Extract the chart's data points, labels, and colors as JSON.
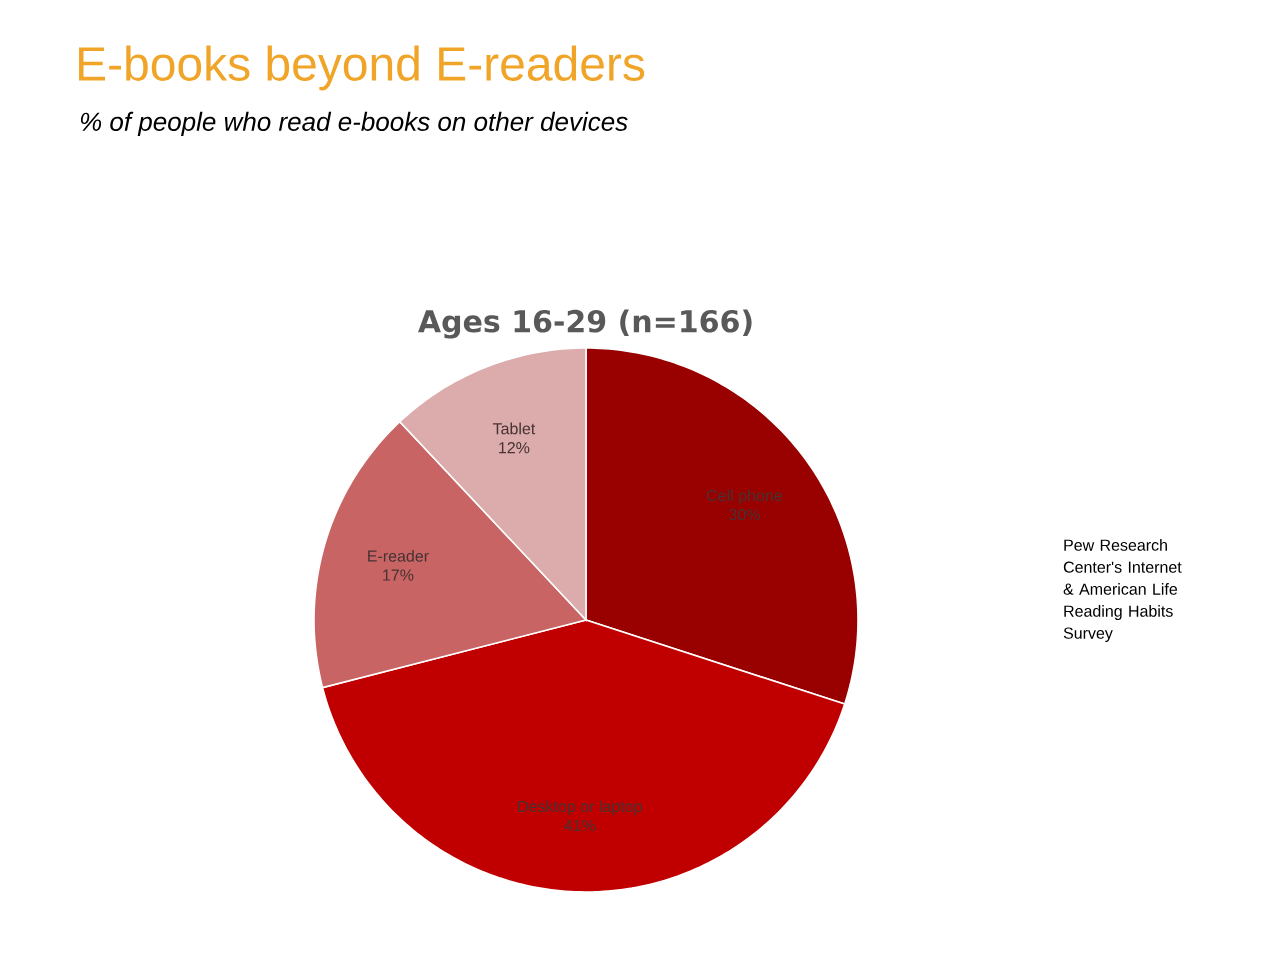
{
  "chart_data": {
    "type": "pie",
    "title": "E-books beyond E-readers",
    "subtitle": "% of people who read e-books on other devices",
    "annotations": [
      "Ages 16-29 (n=166)",
      "Pew Research Center's Internet & American Life Reading Habits Survey"
    ],
    "categories": [
      "Cell phone",
      "Desktop or laptop",
      "E-reader",
      "Tablet"
    ],
    "values": [
      30,
      41,
      17,
      12
    ],
    "colors": [
      "#990000",
      "#c00000",
      "#c86464",
      "#dcabab"
    ],
    "value_labels": [
      "30%",
      "41%",
      "17%",
      "12%"
    ]
  }
}
